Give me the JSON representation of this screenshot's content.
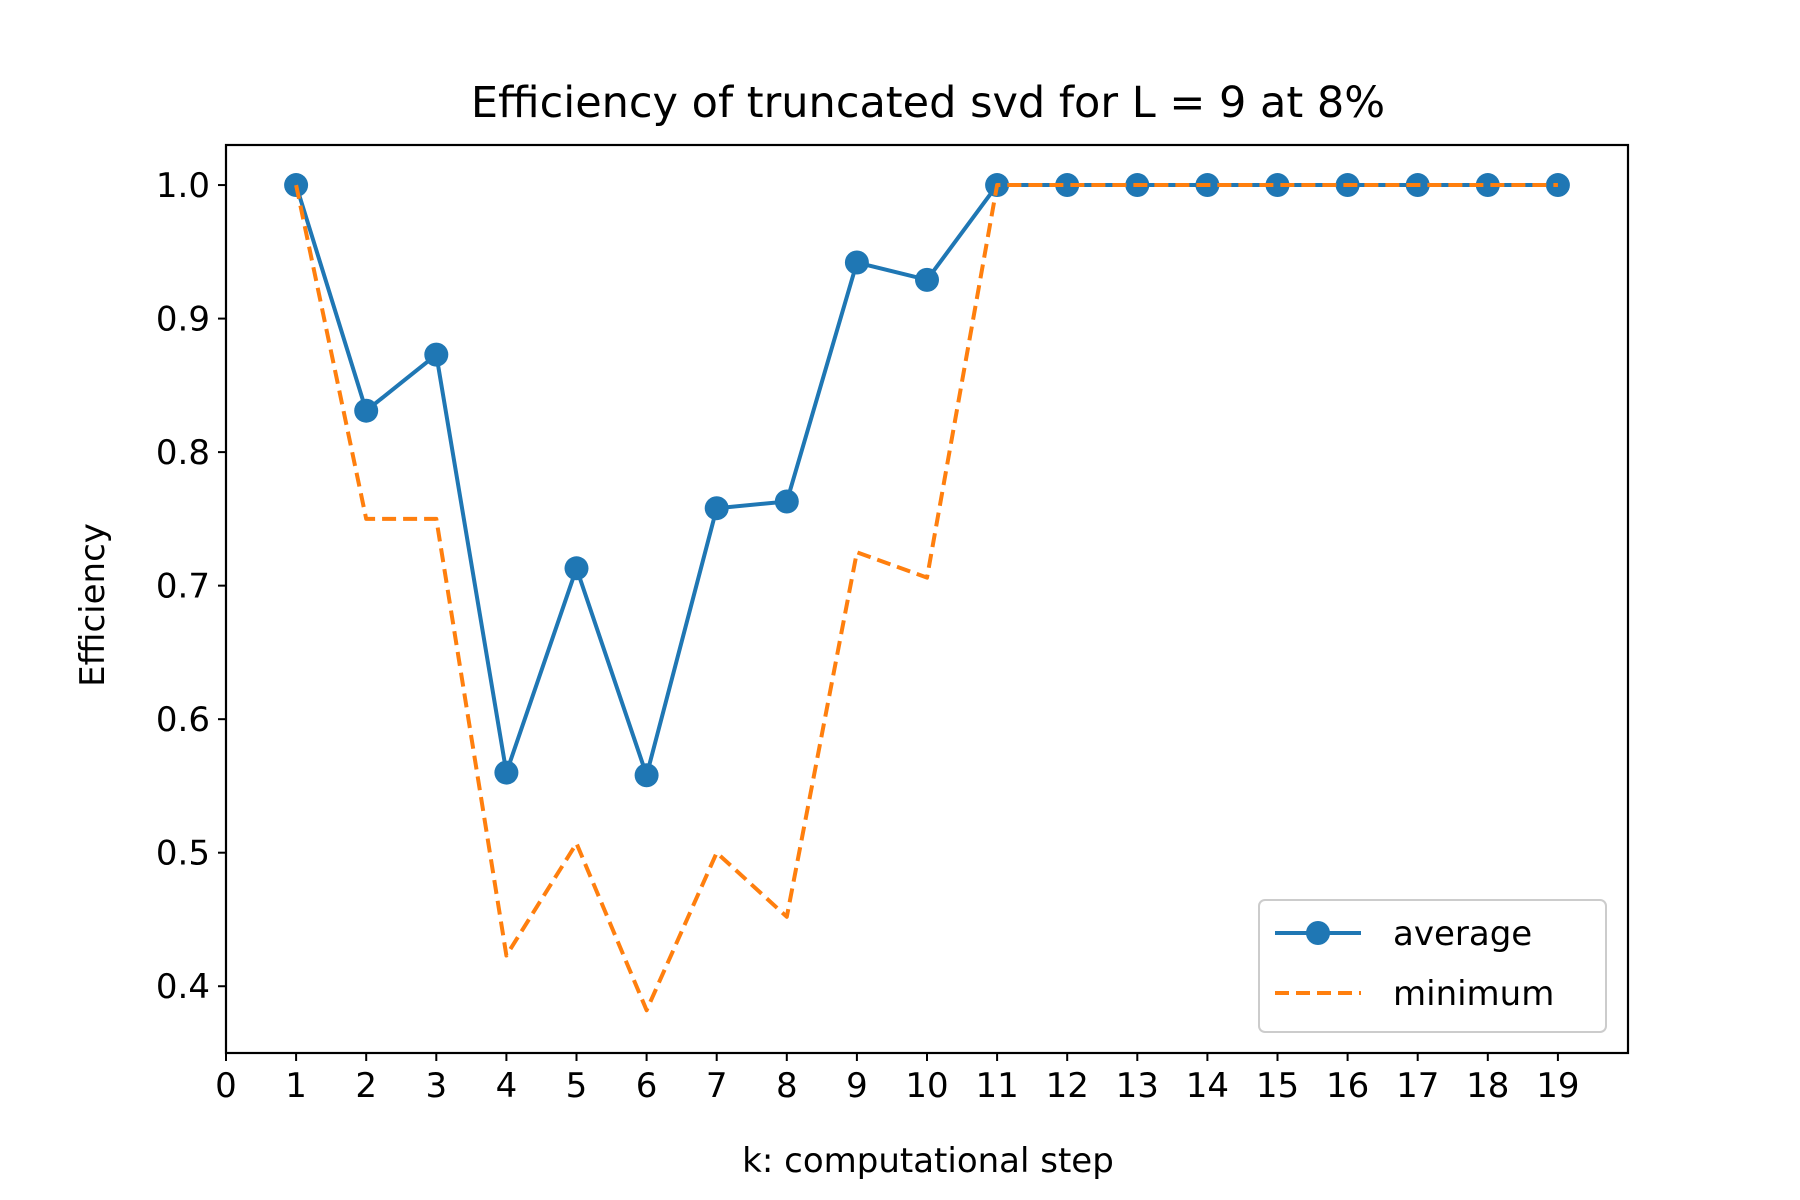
{
  "chart_data": {
    "type": "line",
    "title": "Efficiency of truncated svd for L = 9 at 8%",
    "xlabel": "k: computational step",
    "ylabel": "Efficiency",
    "xlim": [
      0,
      20
    ],
    "ylim": [
      0.35,
      1.03
    ],
    "xticks": [
      0,
      1,
      2,
      3,
      4,
      5,
      6,
      7,
      8,
      9,
      10,
      11,
      12,
      13,
      14,
      15,
      16,
      17,
      18,
      19
    ],
    "xtick_labels": [
      "0",
      "1",
      "2",
      "3",
      "4",
      "5",
      "6",
      "7",
      "8",
      "9",
      "10",
      "11",
      "12",
      "13",
      "14",
      "15",
      "16",
      "17",
      "18",
      "19"
    ],
    "yticks": [
      0.4,
      0.5,
      0.6,
      0.7,
      0.8,
      0.9,
      1.0
    ],
    "ytick_labels": [
      "0.4",
      "0.5",
      "0.6",
      "0.7",
      "0.8",
      "0.9",
      "1.0"
    ],
    "grid": false,
    "legend_position": "lower-right",
    "x": [
      1,
      2,
      3,
      4,
      5,
      6,
      7,
      8,
      9,
      10,
      11,
      12,
      13,
      14,
      15,
      16,
      17,
      18,
      19
    ],
    "series": [
      {
        "name": "average",
        "style": "solid-with-markers",
        "color": "#1f77b4",
        "values": [
          1.0,
          0.831,
          0.873,
          0.56,
          0.713,
          0.558,
          0.758,
          0.763,
          0.942,
          0.929,
          1.0,
          1.0,
          1.0,
          1.0,
          1.0,
          1.0,
          1.0,
          1.0,
          1.0
        ]
      },
      {
        "name": "minimum",
        "style": "dashed",
        "color": "#ff7f0e",
        "values": [
          1.0,
          0.75,
          0.75,
          0.423,
          0.507,
          0.382,
          0.5,
          0.452,
          0.725,
          0.706,
          1.0,
          1.0,
          1.0,
          1.0,
          1.0,
          1.0,
          1.0,
          1.0,
          1.0
        ]
      }
    ]
  }
}
